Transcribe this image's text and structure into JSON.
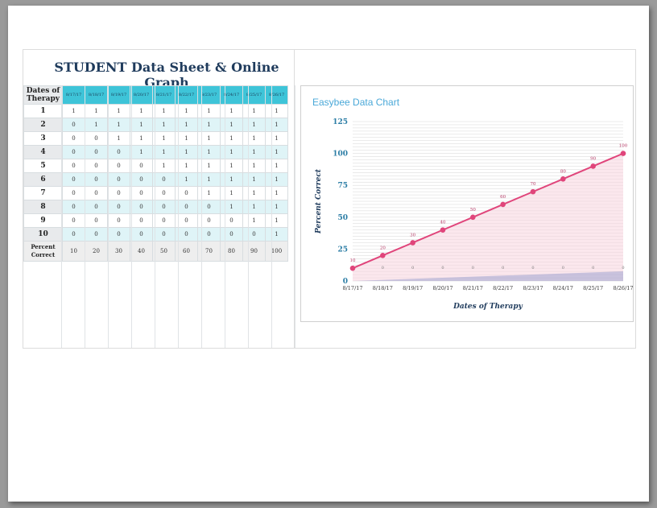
{
  "sheet": {
    "title": "STUDENT Data Sheet & Online Graph",
    "header_label": "Dates of Therapy",
    "dates": [
      "8/17/17",
      "8/18/17",
      "8/19/17",
      "8/20/17",
      "8/21/17",
      "8/22/17",
      "8/23/17",
      "8/24/17",
      "8/25/17",
      "8/26/17"
    ],
    "rows": [
      {
        "label": "1",
        "values": [
          "1",
          "1",
          "1",
          "1",
          "1",
          "1",
          "1",
          "1",
          "1",
          "1"
        ]
      },
      {
        "label": "2",
        "values": [
          "0",
          "1",
          "1",
          "1",
          "1",
          "1",
          "1",
          "1",
          "1",
          "1"
        ]
      },
      {
        "label": "3",
        "values": [
          "0",
          "0",
          "1",
          "1",
          "1",
          "1",
          "1",
          "1",
          "1",
          "1"
        ]
      },
      {
        "label": "4",
        "values": [
          "0",
          "0",
          "0",
          "1",
          "1",
          "1",
          "1",
          "1",
          "1",
          "1"
        ]
      },
      {
        "label": "5",
        "values": [
          "0",
          "0",
          "0",
          "0",
          "1",
          "1",
          "1",
          "1",
          "1",
          "1"
        ]
      },
      {
        "label": "6",
        "values": [
          "0",
          "0",
          "0",
          "0",
          "0",
          "1",
          "1",
          "1",
          "1",
          "1"
        ]
      },
      {
        "label": "7",
        "values": [
          "0",
          "0",
          "0",
          "0",
          "0",
          "0",
          "1",
          "1",
          "1",
          "1"
        ]
      },
      {
        "label": "8",
        "values": [
          "0",
          "0",
          "0",
          "0",
          "0",
          "0",
          "0",
          "1",
          "1",
          "1"
        ]
      },
      {
        "label": "9",
        "values": [
          "0",
          "0",
          "0",
          "0",
          "0",
          "0",
          "0",
          "0",
          "1",
          "1"
        ]
      },
      {
        "label": "10",
        "values": [
          "0",
          "0",
          "0",
          "0",
          "0",
          "0",
          "0",
          "0",
          "0",
          "1"
        ]
      }
    ],
    "footer_label": "Percent Correct",
    "percent_values": [
      "10",
      "20",
      "30",
      "40",
      "50",
      "60",
      "70",
      "80",
      "90",
      "100"
    ]
  },
  "chart_data": {
    "type": "line",
    "title": "Easybee Data Chart",
    "xlabel": "Dates of Therapy",
    "ylabel": "Percent Correct",
    "categories": [
      "8/17/17",
      "8/18/17",
      "8/19/17",
      "8/20/17",
      "8/21/17",
      "8/22/17",
      "8/23/17",
      "8/24/17",
      "8/25/17",
      "8/26/17"
    ],
    "yticks": [
      0,
      25,
      50,
      75,
      100,
      125
    ],
    "ylim": [
      0,
      125
    ],
    "grid": true,
    "series": [
      {
        "values": [
          10,
          20,
          30,
          40,
          50,
          60,
          70,
          80,
          90,
          100
        ],
        "color": "#e0457b"
      }
    ],
    "point_labels": [
      "10",
      "20",
      "30",
      "40",
      "50",
      "60",
      "70",
      "80",
      "90",
      "100"
    ],
    "zero_labels": [
      "0",
      "0",
      "0",
      "0",
      "0",
      "0",
      "0",
      "0",
      "0",
      "0"
    ],
    "colors": {
      "line": "#e0457b",
      "area": "#f7d4df",
      "axis_text": "#2b7da5",
      "header": "#3ec4d8"
    }
  }
}
